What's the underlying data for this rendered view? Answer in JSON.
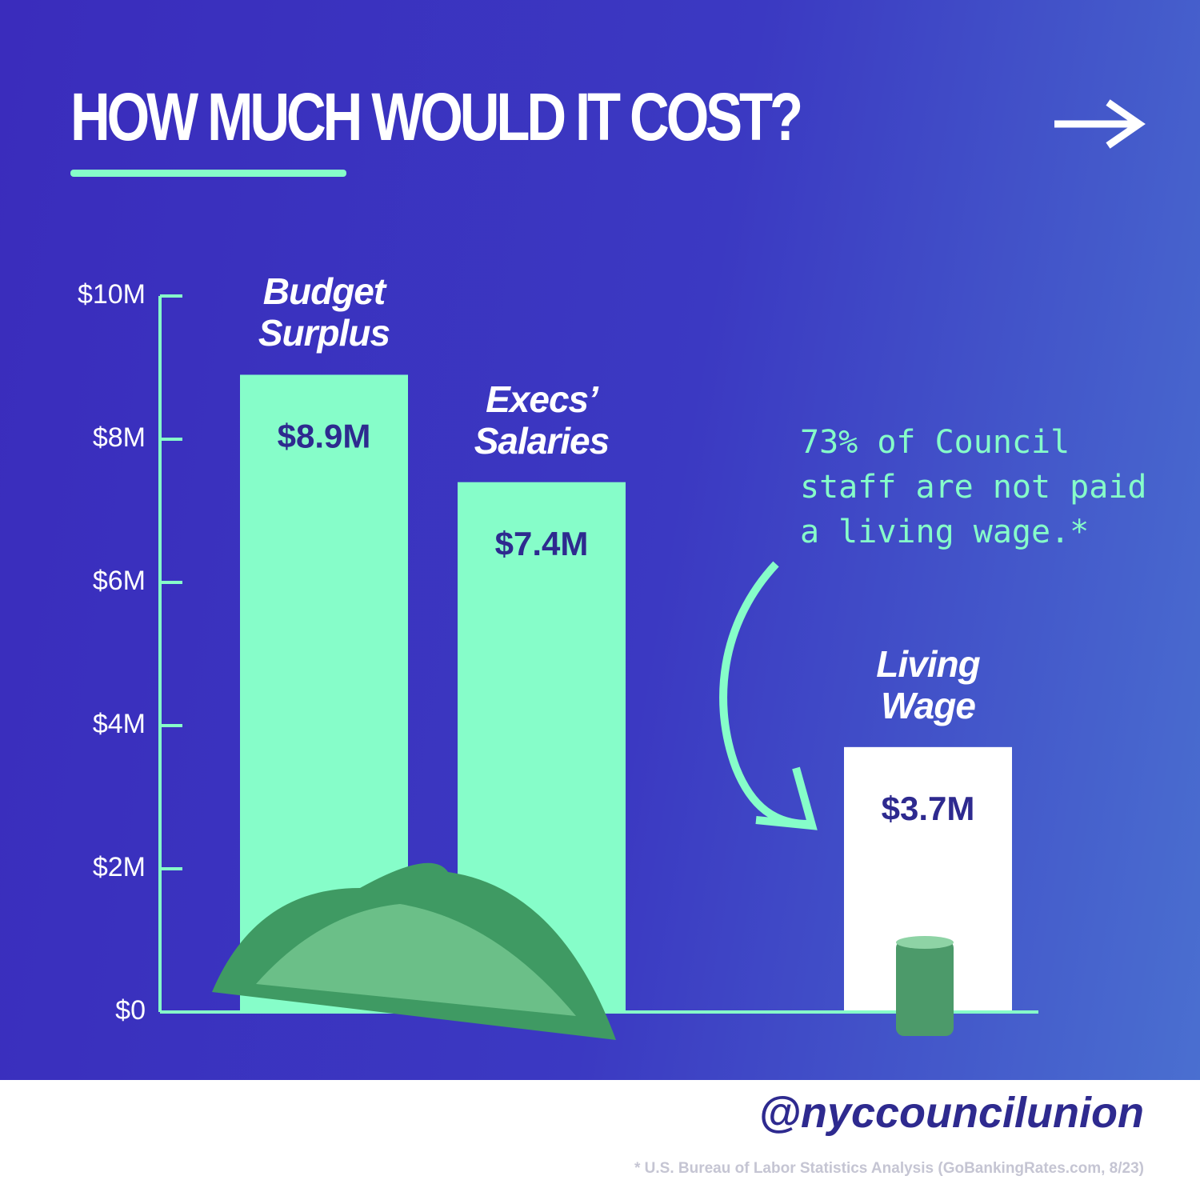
{
  "chart_data": {
    "type": "bar",
    "title": "HOW MUCH WOULD IT COST?",
    "categories": [
      "Budget Surplus",
      "Execs’ Salaries",
      "Living Wage"
    ],
    "values": [
      8.9,
      7.4,
      3.7
    ],
    "value_labels": [
      "$8.9M",
      "$7.4M",
      "$3.7M"
    ],
    "colors": [
      "#86fdc9",
      "#86fdc9",
      "#ffffff"
    ],
    "ylim": [
      0,
      10
    ],
    "yticks": [
      {
        "value": 0,
        "label": "$0"
      },
      {
        "value": 2,
        "label": "$2M"
      },
      {
        "value": 4,
        "label": "$4M"
      },
      {
        "value": 6,
        "label": "$6M"
      },
      {
        "value": 8,
        "label": "$8M"
      },
      {
        "value": 10,
        "label": "$10M"
      }
    ],
    "grid": false,
    "annotation": "73% of Council staff are not paid a living wage.*",
    "handle": "@nyccouncilunion",
    "footnote": "* U.S. Bureau of Labor Statistics Analysis (GoBankingRates.com, 8/23)"
  }
}
